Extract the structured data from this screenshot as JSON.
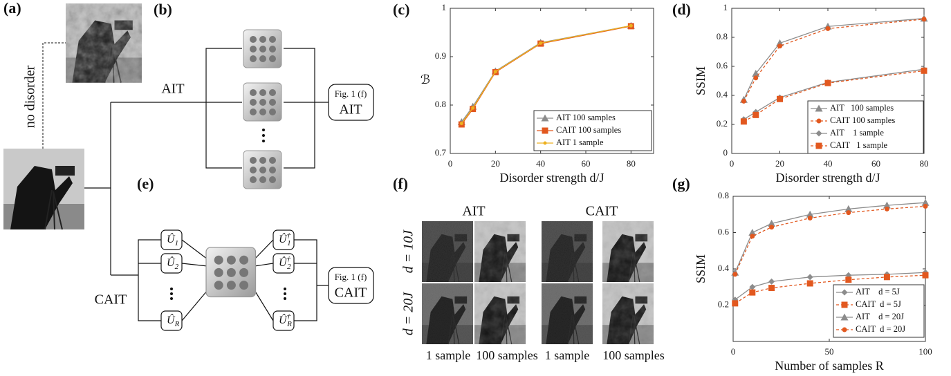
{
  "figure": {
    "panels": [
      "(a)",
      "(b)",
      "(c)",
      "(d)",
      "(e)",
      "(f)",
      "(g)"
    ],
    "no_disorder": "no disorder",
    "branches": [
      "AIT",
      "CAIT"
    ],
    "fig_refs": [
      {
        "ref": "Fig. 1 (f)",
        "label": "AIT"
      },
      {
        "ref": "Fig. 1 (f)",
        "label": "CAIT"
      }
    ],
    "unitaries": [
      {
        "symbol": "Û",
        "sub": "1"
      },
      {
        "symbol": "Û",
        "sub": "2"
      },
      {
        "symbol": "Û",
        "sub": "R"
      }
    ],
    "adjoints": [
      {
        "symbol": "Û",
        "sup": "†",
        "sub": "1"
      },
      {
        "symbol": "Û",
        "sup": "†",
        "sub": "2"
      },
      {
        "symbol": "Û",
        "sup": "†",
        "sub": "R"
      }
    ],
    "f_columns": [
      "AIT",
      "CAIT"
    ],
    "f_rows": [
      "d = 10J",
      "d = 20J"
    ],
    "f_samples": [
      "1 sample",
      "100 samples",
      "1 sample",
      "100 samples"
    ]
  },
  "chart_data": [
    {
      "type": "line",
      "xlabel": "Disorder strength d/J",
      "ylabel": "ℬ",
      "x": [
        5,
        10,
        20,
        40,
        80
      ],
      "xlim": [
        0,
        90
      ],
      "xticks": [
        0,
        20,
        40,
        60,
        80
      ],
      "ylim": [
        0.7,
        1
      ],
      "yticks": [
        0.7,
        0.8,
        0.9,
        1
      ],
      "legend": "lower right",
      "series": [
        {
          "name": "AIT 100 samples",
          "color": "#8c8c8c",
          "marker": "triangle",
          "dashed": false,
          "values": [
            0.765,
            0.797,
            0.87,
            0.929,
            0.964
          ]
        },
        {
          "name": "CAIT 100 samples",
          "color": "#e2581f",
          "marker": "square",
          "dashed": false,
          "values": [
            0.76,
            0.792,
            0.868,
            0.927,
            0.963
          ]
        },
        {
          "name": "AIT 1 sample",
          "color": "#edb120",
          "marker": "dot",
          "dashed": false,
          "values": [
            0.762,
            0.794,
            0.869,
            0.928,
            0.964
          ]
        }
      ]
    },
    {
      "type": "line",
      "xlabel": "Disorder strength d/J",
      "ylabel": "SSIM",
      "x": [
        5,
        10,
        20,
        40,
        80
      ],
      "xlim": [
        0,
        80
      ],
      "xticks": [
        0,
        20,
        40,
        60,
        80
      ],
      "ylim": [
        0,
        1
      ],
      "yticks": [
        0,
        0.2,
        0.4,
        0.6,
        0.8,
        1
      ],
      "legend": "lower right",
      "series": [
        {
          "name": "AIT   100 samples",
          "color": "#8c8c8c",
          "marker": "triangle",
          "dashed": false,
          "values": [
            0.37,
            0.55,
            0.76,
            0.875,
            0.93
          ]
        },
        {
          "name": "CAIT 100 samples",
          "color": "#e2581f",
          "marker": "circle",
          "dashed": true,
          "values": [
            0.36,
            0.52,
            0.74,
            0.86,
            0.925
          ]
        },
        {
          "name": "AIT    1 sample",
          "color": "#8c8c8c",
          "marker": "diamond",
          "dashed": false,
          "values": [
            0.235,
            0.285,
            0.385,
            0.49,
            0.58
          ]
        },
        {
          "name": "CAIT   1 sample",
          "color": "#e2581f",
          "marker": "square",
          "dashed": true,
          "values": [
            0.22,
            0.265,
            0.375,
            0.485,
            0.57
          ]
        }
      ]
    },
    {
      "type": "line",
      "xlabel": "Number of samples R",
      "ylabel": "SSIM",
      "x": [
        1,
        10,
        20,
        40,
        60,
        80,
        100
      ],
      "xlim": [
        0,
        100
      ],
      "xticks": [
        0,
        50,
        100
      ],
      "ylim": [
        0,
        0.8
      ],
      "yticks": [
        0.2,
        0.4,
        0.6,
        0.8
      ],
      "legend": "lower right",
      "series": [
        {
          "name": "AIT    d = 5J",
          "color": "#8c8c8c",
          "marker": "diamond",
          "dashed": false,
          "values": [
            0.23,
            0.3,
            0.33,
            0.355,
            0.365,
            0.37,
            0.38
          ]
        },
        {
          "name": "CAIT  d = 5J",
          "color": "#e2581f",
          "marker": "square",
          "dashed": true,
          "values": [
            0.21,
            0.27,
            0.295,
            0.32,
            0.34,
            0.355,
            0.365
          ]
        },
        {
          "name": "AIT    d = 20J",
          "color": "#8c8c8c",
          "marker": "triangle",
          "dashed": false,
          "values": [
            0.38,
            0.6,
            0.65,
            0.7,
            0.73,
            0.75,
            0.765
          ]
        },
        {
          "name": "CAIT  d = 20J",
          "color": "#e2581f",
          "marker": "circle",
          "dashed": true,
          "values": [
            0.37,
            0.58,
            0.63,
            0.68,
            0.71,
            0.73,
            0.745
          ]
        }
      ]
    }
  ]
}
